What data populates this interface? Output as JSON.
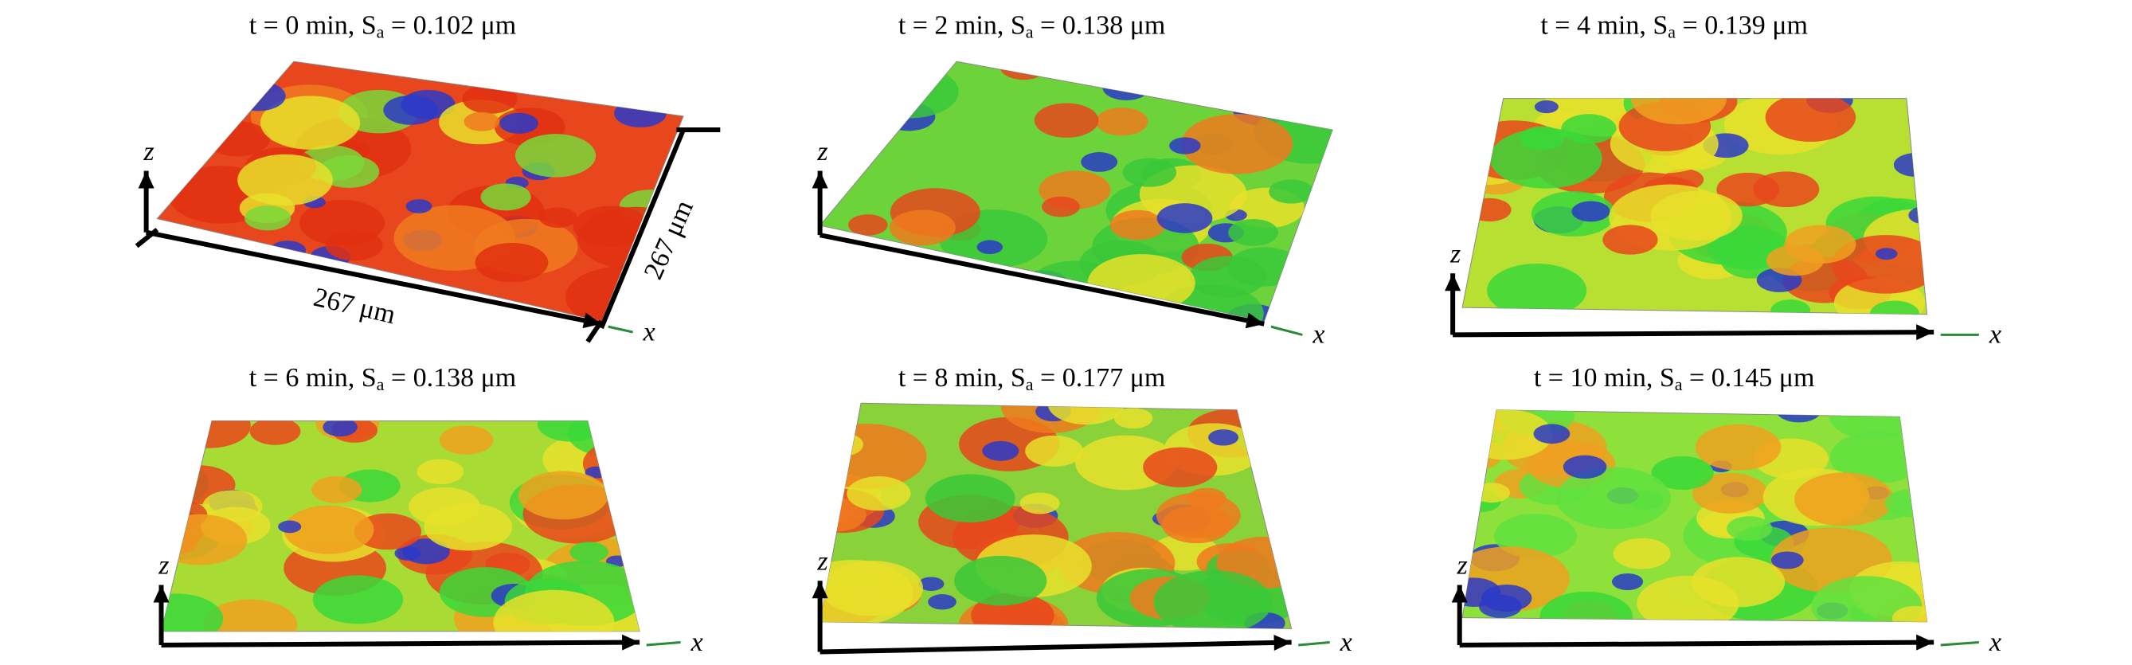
{
  "panels": [
    {
      "title": [
        "t = 0 min, S",
        "a",
        " = 0.102 μm"
      ],
      "dims": [
        "267 μm",
        "267 μm"
      ]
    },
    {
      "title": [
        "t = 2 min, S",
        "a",
        " = 0.138 μm"
      ]
    },
    {
      "title": [
        "t = 4 min, S",
        "a",
        " = 0.139 μm"
      ]
    },
    {
      "title": [
        "t = 6 min, S",
        "a",
        " = 0.138 μm"
      ]
    },
    {
      "title": [
        "t = 8 min, S",
        "a",
        " = 0.177 μm"
      ]
    },
    {
      "title": [
        "t = 10 min, S",
        "a",
        " = 0.145 μm"
      ]
    }
  ],
  "axis_labels": {
    "z": "z",
    "x": "x"
  }
}
